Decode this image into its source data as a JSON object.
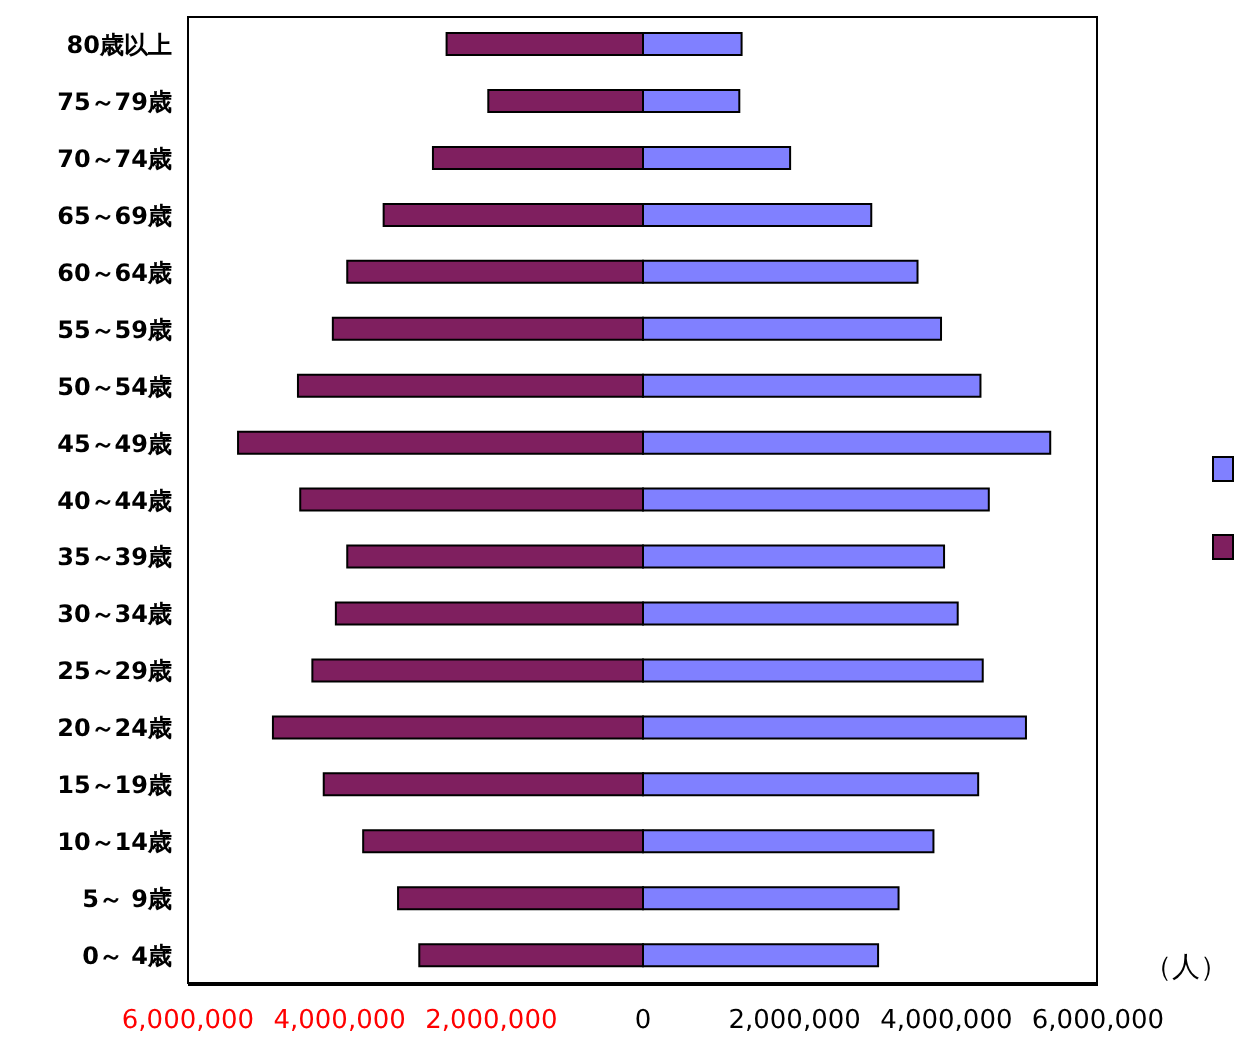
{
  "chart_data": {
    "type": "bar",
    "orientation": "horizontal",
    "stacked": true,
    "xlabel": "（人）",
    "categories": [
      "80歳以上",
      "75～79歳",
      "70～74歳",
      "65～69歳",
      "60～64歳",
      "55～59歳",
      "50～54歳",
      "45～49歳",
      "40～44歳",
      "35～39歳",
      "30～34歳",
      "25～29歳",
      "20～24歳",
      "15～19歳",
      "10～14歳",
      "5～ 9歳",
      "0～ 4歳"
    ],
    "series": [
      {
        "color": "#7f1f5f",
        "values": [
          -2590000,
          -2040000,
          -2770000,
          -3420000,
          -3900000,
          -4090000,
          -4550000,
          -5340000,
          -4520000,
          -3900000,
          -4050000,
          -4360000,
          -4880000,
          -4210000,
          -3690000,
          -3230000,
          -2950000
        ]
      },
      {
        "color": "#8080ff",
        "values": [
          1300000,
          1270000,
          1940000,
          3010000,
          3620000,
          3930000,
          4450000,
          5370000,
          4560000,
          3970000,
          4150000,
          4480000,
          5050000,
          4420000,
          3830000,
          3370000,
          3100000
        ]
      }
    ],
    "xlim": [
      -6000000,
      6000000
    ],
    "xticks": [
      {
        "value": -6000000,
        "label": "6,000,000"
      },
      {
        "value": -4000000,
        "label": "4,000,000"
      },
      {
        "value": -2000000,
        "label": "2,000,000"
      },
      0,
      {
        "value": 2000000,
        "label": "2,000,000"
      },
      {
        "value": 4000000,
        "label": "4,000,000"
      },
      {
        "value": 6000000,
        "label": "6,000,000"
      }
    ]
  }
}
